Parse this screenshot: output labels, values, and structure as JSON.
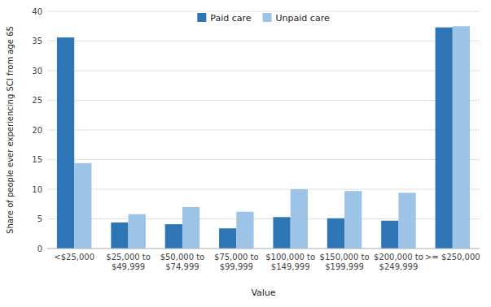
{
  "chart_data": {
    "type": "bar",
    "xlabel": "Value",
    "ylabel": "Share of people ever experiencing SCI from age 65",
    "categories": [
      "<$25,000",
      "$25,000 to\n$49,999",
      "$50,000 to\n$74,999",
      "$75,000 to\n$99,999",
      "$100,000 to\n$149,999",
      "$150,000 to\n$199,999",
      "$200,000 to\n$249,999",
      ">= $250,000"
    ],
    "series": [
      {
        "name": "Paid care",
        "color": "#2E75B6",
        "values": [
          35.6,
          4.4,
          4.1,
          3.4,
          5.3,
          5.1,
          4.7,
          37.3
        ]
      },
      {
        "name": "Unpaid care",
        "color": "#9DC3E6",
        "values": [
          14.4,
          5.8,
          7.0,
          6.2,
          10.0,
          9.7,
          9.4,
          37.5
        ]
      }
    ],
    "ylim": [
      0,
      40
    ],
    "yticks": [
      0,
      5,
      10,
      15,
      20,
      25,
      30,
      35,
      40
    ],
    "grid": true,
    "legend": "top"
  }
}
